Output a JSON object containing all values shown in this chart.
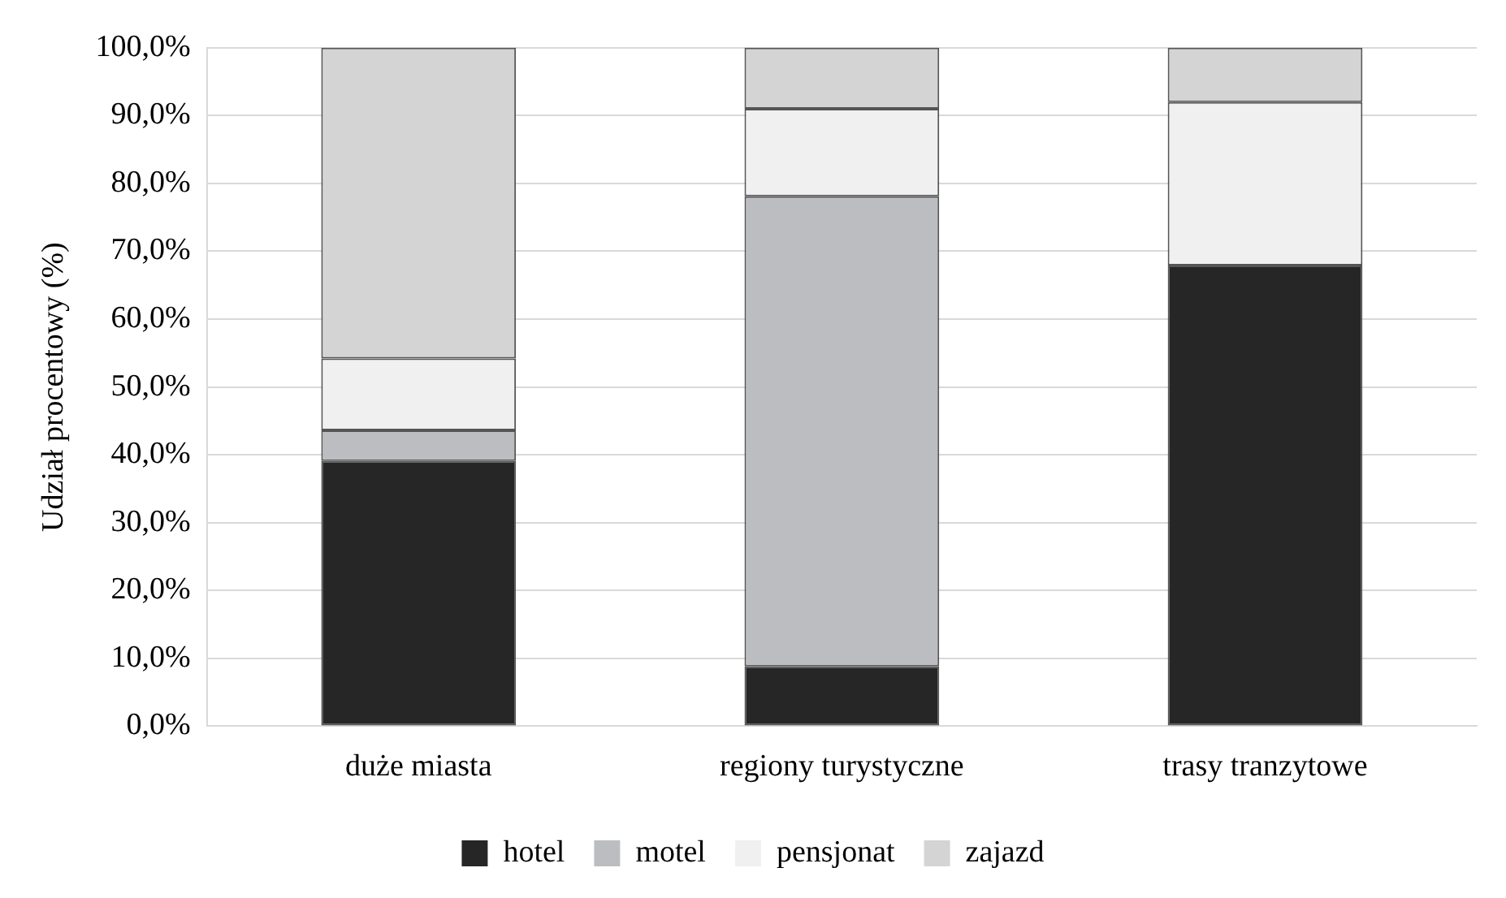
{
  "chart_data": {
    "type": "bar",
    "stacked": true,
    "ylabel": "Udział procentowy (%)",
    "categories": [
      "duże miasta",
      "regiony turystyczne",
      "trasy tranzytowe"
    ],
    "series": [
      {
        "name": "hotel",
        "color": "#262626",
        "values": [
          39.1,
          8.8,
          67.9
        ]
      },
      {
        "name": "motel",
        "color": "#bcbdc0",
        "values": [
          4.5,
          69.3,
          0
        ]
      },
      {
        "name": "pensjonat",
        "color": "#f0f0f0",
        "values": [
          10.6,
          12.9,
          24.1
        ]
      },
      {
        "name": "zajazd",
        "color": "#d4d4d4",
        "values": [
          45.8,
          9.0,
          8.0
        ]
      }
    ],
    "ylim": [
      0,
      100
    ],
    "yticks": [
      {
        "value": 0,
        "label": "0,0%"
      },
      {
        "value": 10,
        "label": "10,0%"
      },
      {
        "value": 20,
        "label": "20,0%"
      },
      {
        "value": 30,
        "label": "30,0%"
      },
      {
        "value": 40,
        "label": "40,0%"
      },
      {
        "value": 50,
        "label": "50,0%"
      },
      {
        "value": 60,
        "label": "60,0%"
      },
      {
        "value": 70,
        "label": "70,0%"
      },
      {
        "value": 80,
        "label": "80,0%"
      },
      {
        "value": 90,
        "label": "90,0%"
      },
      {
        "value": 100,
        "label": "100,0%"
      }
    ],
    "grid": "y",
    "legend": "bottom"
  }
}
